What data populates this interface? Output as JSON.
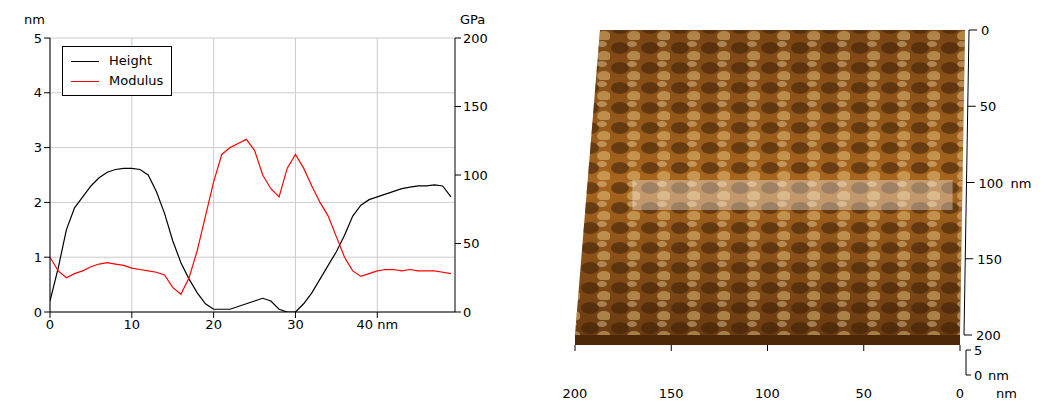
{
  "chart_data": [
    {
      "type": "line",
      "x": [
        0,
        1,
        2,
        3,
        4,
        5,
        6,
        7,
        8,
        9,
        10,
        11,
        12,
        13,
        14,
        15,
        16,
        17,
        18,
        19,
        20,
        21,
        22,
        23,
        24,
        25,
        26,
        27,
        28,
        29,
        30,
        31,
        32,
        33,
        34,
        35,
        36,
        37,
        38,
        39,
        40,
        41,
        42,
        43,
        44,
        45,
        46,
        47,
        48,
        49
      ],
      "xlim": [
        0,
        49.5
      ],
      "xticks": [
        0,
        10,
        20,
        30,
        {
          "value": 40,
          "label": "40 nm"
        }
      ],
      "ylim": [
        0,
        5
      ],
      "yticks": [
        0,
        1,
        2,
        3,
        4,
        5
      ],
      "y2lim": [
        0,
        200
      ],
      "y2ticks": [
        0,
        50,
        100,
        150,
        200
      ],
      "y_label": "nm",
      "y2_label": "GPa",
      "grid": true,
      "legend": "upper left",
      "series": [
        {
          "name": "Height",
          "color": "#000000",
          "values": [
            0.2,
            0.8,
            1.5,
            1.9,
            2.1,
            2.3,
            2.45,
            2.55,
            2.6,
            2.62,
            2.62,
            2.6,
            2.5,
            2.2,
            1.8,
            1.3,
            0.9,
            0.6,
            0.35,
            0.15,
            0.05,
            0.05,
            0.05,
            0.1,
            0.15,
            0.2,
            0.25,
            0.2,
            0.05,
            0.0,
            0.0,
            0.15,
            0.35,
            0.6,
            0.85,
            1.1,
            1.4,
            1.75,
            1.95,
            2.05,
            2.1,
            2.15,
            2.2,
            2.25,
            2.28,
            2.3,
            2.3,
            2.32,
            2.3,
            2.1
          ]
        },
        {
          "name": "Modulus",
          "color": "#ff0000",
          "axis": "y2",
          "values": [
            40,
            30,
            25,
            28,
            30,
            33,
            35,
            36,
            35,
            34,
            32,
            31,
            30,
            29,
            27,
            18,
            13,
            25,
            45,
            70,
            95,
            115,
            120,
            123,
            126,
            118,
            100,
            90,
            84,
            105,
            115,
            105,
            92,
            80,
            70,
            55,
            40,
            30,
            26,
            28,
            30,
            31,
            31,
            30,
            31,
            30,
            30,
            30,
            29,
            28
          ]
        }
      ]
    },
    {
      "type": "surface",
      "xlim": [
        0,
        200
      ],
      "xticks": [
        200,
        150,
        100,
        50,
        0
      ],
      "ylim": [
        0,
        200
      ],
      "yticks": [
        0,
        50,
        100,
        150,
        200
      ],
      "zlim": [
        0,
        5
      ],
      "zticks": [
        5,
        0
      ],
      "x_label": "nm",
      "y_label": "nm",
      "z_label": "nm"
    }
  ]
}
